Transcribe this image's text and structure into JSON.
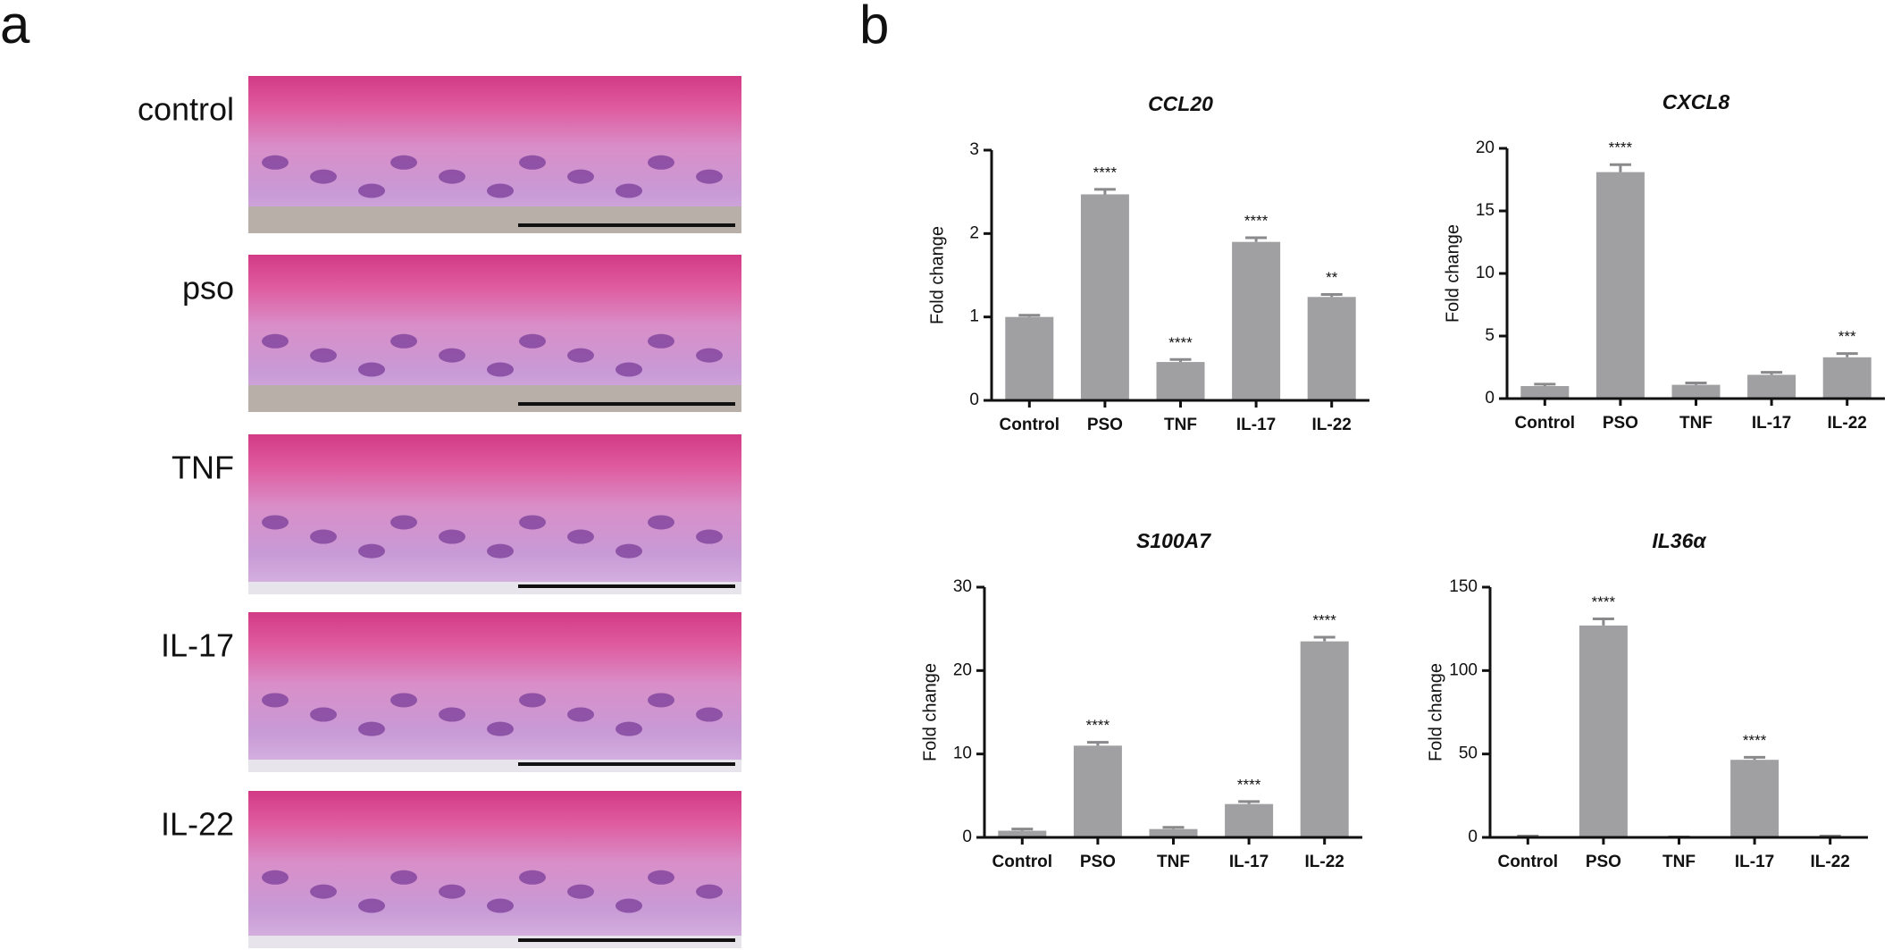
{
  "panel_labels": [
    "a",
    "b"
  ],
  "histology": {
    "labels": [
      "control",
      "pso",
      "TNF",
      "IL-17",
      "IL-22"
    ]
  },
  "chart_data": [
    {
      "type": "bar",
      "title": "CCL20",
      "y_label": "Fold change",
      "color": "#a0a0a2",
      "categories": [
        "Control",
        "PSO",
        "TNF",
        "IL-17",
        "IL-22"
      ],
      "values": [
        1.0,
        2.47,
        0.46,
        1.9,
        1.24
      ],
      "errors": [
        0.02,
        0.06,
        0.03,
        0.05,
        0.03
      ],
      "annotations": [
        null,
        "****",
        "****",
        "****",
        "**"
      ],
      "ylim": [
        0,
        3
      ],
      "yticks": [
        0,
        1,
        2,
        3
      ]
    },
    {
      "type": "bar",
      "title": "CXCL8",
      "y_label": "Fold change",
      "color": "#a0a0a2",
      "categories": [
        "Control",
        "PSO",
        "TNF",
        "IL-17",
        "IL-22"
      ],
      "values": [
        1.0,
        18.1,
        1.1,
        1.9,
        3.3
      ],
      "errors": [
        0.15,
        0.6,
        0.15,
        0.2,
        0.3
      ],
      "annotations": [
        null,
        "****",
        null,
        null,
        "***"
      ],
      "ylim": [
        0,
        20
      ],
      "yticks": [
        0,
        5,
        10,
        15,
        20
      ]
    },
    {
      "type": "bar",
      "title": "S100A7",
      "y_label": "Fold change",
      "color": "#a0a0a2",
      "categories": [
        "Control",
        "PSO",
        "TNF",
        "IL-17",
        "IL-22"
      ],
      "values": [
        0.8,
        11.0,
        1.0,
        4.0,
        23.5
      ],
      "errors": [
        0.2,
        0.4,
        0.2,
        0.3,
        0.5
      ],
      "annotations": [
        null,
        "****",
        null,
        "****",
        "****"
      ],
      "ylim": [
        0,
        30
      ],
      "yticks": [
        0,
        10,
        20,
        30
      ]
    },
    {
      "type": "bar",
      "title": "IL36α",
      "y_label": "Fold change",
      "color": "#a0a0a2",
      "categories": [
        "Control",
        "PSO",
        "TNF",
        "IL-17",
        "IL-22"
      ],
      "values": [
        0.5,
        127,
        0.2,
        46.5,
        0.5
      ],
      "errors": [
        0.3,
        4,
        0.1,
        1.5,
        0.3
      ],
      "annotations": [
        null,
        "****",
        null,
        "****",
        null
      ],
      "ylim": [
        0,
        150
      ],
      "yticks": [
        0,
        50,
        100,
        150
      ]
    }
  ]
}
